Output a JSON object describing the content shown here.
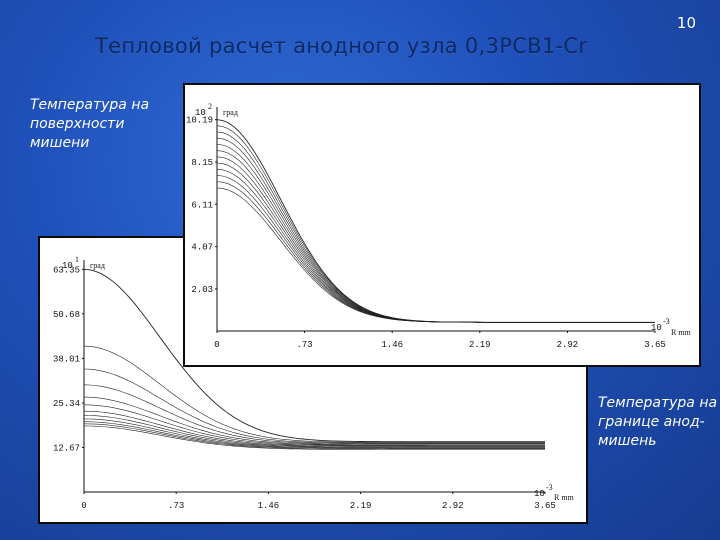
{
  "slide": {
    "title": "Тепловой расчет анодного узла 0,3РСВ1-Cr",
    "number": "10",
    "caption_surface": "Температура на поверхности мишени",
    "caption_boundary": "Температура на границе анод-мишень"
  },
  "chart_data": [
    {
      "type": "line",
      "name": "front",
      "y_multiplier": "10",
      "y_multiplier_exp": "2",
      "y_unit": "град",
      "x_multiplier": "10",
      "x_multiplier_exp": "-3",
      "x_unit": "R mm",
      "x_ticks": [
        "0",
        ".73",
        "1.46",
        "2.19",
        "2.92",
        "3.65"
      ],
      "y_ticks": [
        "10.19",
        "8.15",
        "6.11",
        "4.07",
        "2.03"
      ],
      "xlim": [
        0,
        3.65
      ],
      "ylim": [
        0,
        10.8
      ],
      "curve_count": 12,
      "peak_values": [
        10.19,
        9.9,
        9.6,
        9.3,
        9.0,
        8.7,
        8.4,
        8.1,
        7.8,
        7.5,
        7.2,
        6.9
      ],
      "tail_value": 0.42
    },
    {
      "type": "line",
      "name": "back",
      "y_multiplier": "10",
      "y_multiplier_exp": "1",
      "y_unit": "град",
      "x_multiplier": "10",
      "x_multiplier_exp": "-3",
      "x_unit": "R mm",
      "x_ticks": [
        "0",
        ".73",
        "1.46",
        "2.19",
        "2.92",
        "3.65"
      ],
      "y_ticks": [
        "63.35",
        "50.68",
        "38.01",
        "25.34",
        "12.67"
      ],
      "xlim": [
        0,
        3.65
      ],
      "ylim": [
        0,
        66
      ],
      "peak_values": [
        63.35,
        41.5,
        35.0,
        30.5,
        27.0,
        24.8,
        23.0,
        21.8,
        20.8,
        20.0,
        19.4,
        18.8
      ],
      "tail_values": [
        14.3,
        14.1,
        13.9,
        13.7,
        13.5,
        13.3,
        13.1,
        12.9,
        12.7,
        12.5,
        12.3,
        12.1
      ]
    }
  ]
}
